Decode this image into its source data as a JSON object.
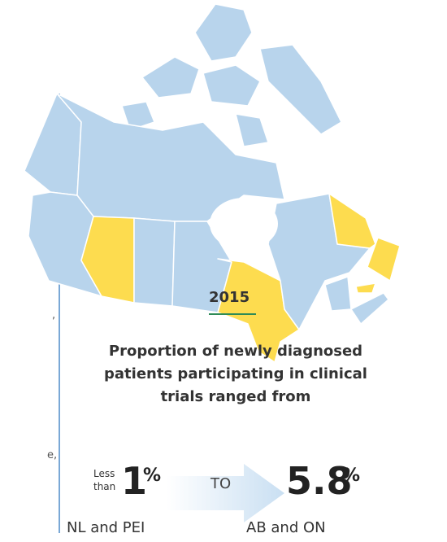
{
  "map": {
    "year": "2015",
    "caption": "Proportion of newly diagnosed patients participating in clinical trials ranged from",
    "low": {
      "prefix": "Less than",
      "value": "1",
      "unit": "%",
      "region": "NL and PEI"
    },
    "connector": "TO",
    "high": {
      "value": "5.8",
      "unit": "%",
      "region": "AB and ON"
    }
  },
  "fragments": [
    ",",
    "e,"
  ]
}
